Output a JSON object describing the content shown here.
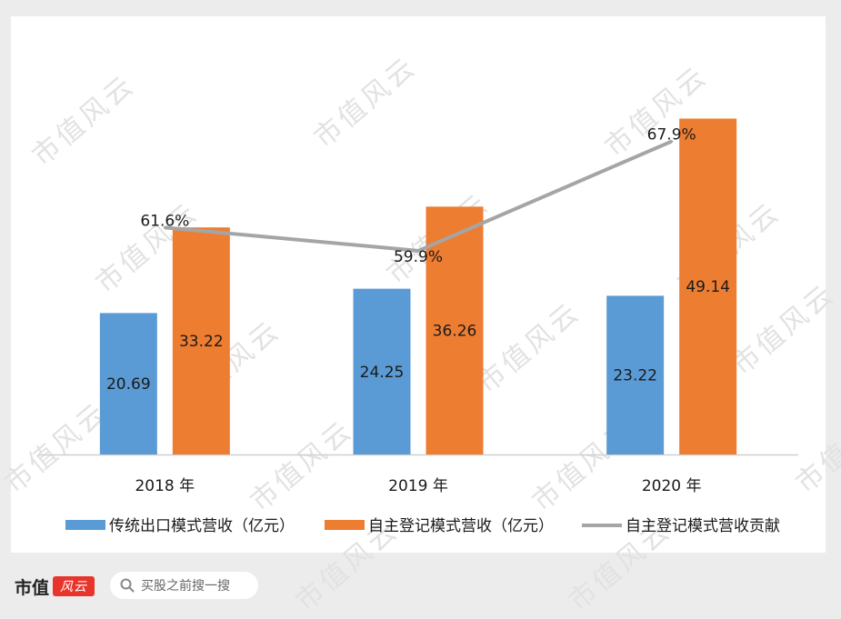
{
  "chart_data": {
    "type": "bar",
    "categories": [
      "2018 年",
      "2019 年",
      "2020 年"
    ],
    "series": [
      {
        "name": "传统出口模式营收（亿元）",
        "type": "bar",
        "color": "#5b9bd5",
        "values": [
          20.69,
          24.25,
          23.22
        ],
        "labels": [
          "20.69",
          "24.25",
          "23.22"
        ]
      },
      {
        "name": "自主登记模式营收（亿元）",
        "type": "bar",
        "color": "#ed7d31",
        "values": [
          33.22,
          36.26,
          49.14
        ],
        "labels": [
          "33.22",
          "36.26",
          "49.14"
        ]
      },
      {
        "name": "自主登记模式营收贡献",
        "type": "line",
        "color": "#a5a5a5",
        "values": [
          61.6,
          59.9,
          67.9
        ],
        "labels": [
          "61.6%",
          "59.9%",
          "67.9%"
        ],
        "unit": "%",
        "secondary_axis": true
      }
    ],
    "ylim": [
      0,
      50
    ],
    "y2lim": [
      45,
      70
    ],
    "legend": "bottom",
    "grid": false
  },
  "watermark": "市值风云",
  "footer": {
    "brand": "市值",
    "brand_seal": "风云",
    "search_placeholder": "买股之前搜一搜",
    "search_icon": "search-icon"
  }
}
